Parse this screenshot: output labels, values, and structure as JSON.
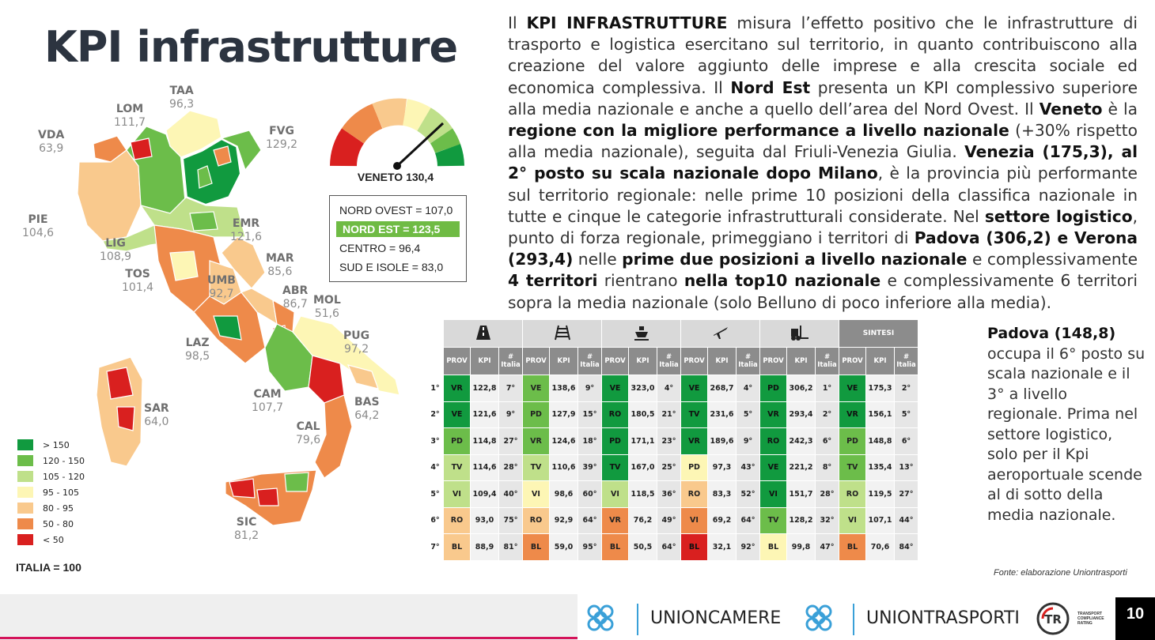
{
  "title": "KPI infrastrutture",
  "regions": [
    {
      "code": "TAA",
      "value": "96,3"
    },
    {
      "code": "LOM",
      "value": "111,7"
    },
    {
      "code": "VDA",
      "value": "63,9"
    },
    {
      "code": "FVG",
      "value": "129,2"
    },
    {
      "code": "PIE",
      "value": "104,6"
    },
    {
      "code": "EMR",
      "value": "121,6"
    },
    {
      "code": "LIG",
      "value": "108,9"
    },
    {
      "code": "TOS",
      "value": "101,4"
    },
    {
      "code": "UMB",
      "value": "92,7"
    },
    {
      "code": "MAR",
      "value": "85,6"
    },
    {
      "code": "ABR",
      "value": "86,7"
    },
    {
      "code": "MOL",
      "value": "51,6"
    },
    {
      "code": "LAZ",
      "value": "98,5"
    },
    {
      "code": "PUG",
      "value": "97,2"
    },
    {
      "code": "SAR",
      "value": "64,0"
    },
    {
      "code": "CAM",
      "value": "107,7"
    },
    {
      "code": "BAS",
      "value": "64,2"
    },
    {
      "code": "CAL",
      "value": "79,6"
    },
    {
      "code": "SIC",
      "value": "81,2"
    }
  ],
  "legend": [
    {
      "label": "> 150",
      "color": "#119a3f"
    },
    {
      "label": "120 - 150",
      "color": "#6cbd4a"
    },
    {
      "label": "105 - 120",
      "color": "#bfe08a"
    },
    {
      "label": "95 - 105",
      "color": "#fdf6b5"
    },
    {
      "label": "80 - 95",
      "color": "#f9c98d"
    },
    {
      "label": "50 - 80",
      "color": "#ee8a4a"
    },
    {
      "label": "< 50",
      "color": "#d9201f"
    }
  ],
  "italia_note": "ITALIA = 100",
  "gauge_label": "VENETO 130,4",
  "areas": {
    "nord_ovest": "NORD OVEST = 107,0",
    "nord_est": "NORD EST = 123,5",
    "centro": "CENTRO = 96,4",
    "sud": "SUD E ISOLE = 83,0"
  },
  "paragraph": {
    "p1": "Il ",
    "b1": "KPI INFRASTRUTTURE",
    "p2": " misura l’effetto positivo che le infrastrutture di trasporto e logistica esercitano sul territorio, in quanto contribuiscono alla creazione del valore aggiunto delle imprese e alla crescita sociale ed economica complessiva. Il ",
    "b2": "Nord Est",
    "p3": " presenta un KPI complessivo superiore alla media nazionale e anche a quello dell’area del Nord Ovest. Il ",
    "b3": "Veneto",
    "p4": " è la ",
    "b4": "regione con la migliore performance a livello nazionale",
    "p5": " (+30% rispetto alla media nazionale), seguita dal Friuli-Venezia Giulia. ",
    "b5": "Venezia (175,3), al 2° posto su scala nazionale dopo Milano",
    "p6": ", è la provincia più performante sul territorio regionale: nelle prime 10 posizioni della classifica nazionale in tutte e cinque le categorie infrastrutturali considerate. Nel ",
    "b6": "settore logistico",
    "p7": ", punto di forza regionale, primeggiano i territori di ",
    "b7": "Padova (306,2) e Verona (293,4)",
    "p8": " nelle ",
    "b8": "prime due posizioni a livello nazionale",
    "p9": " e complessivamente ",
    "b9": "4 territori",
    "p10": " rientrano ",
    "b10": "nella top10 nazionale",
    "p11": " e complessivamente 6 territori sopra la media nazionale (solo Belluno di poco inferiore alla media)."
  },
  "table": {
    "icons": [
      "road-icon",
      "rail-icon",
      "ship-icon",
      "plane-icon",
      "forklift-icon"
    ],
    "sintesi_label": "SINTESI",
    "col_prov": "PROV",
    "col_kpi": "KPI",
    "col_rank": "# Italia",
    "ranks": [
      "1°",
      "2°",
      "3°",
      "4°",
      "5°",
      "6°",
      "7°"
    ],
    "groups": [
      {
        "rows": [
          [
            "VR",
            "122,8",
            "7°",
            "dg"
          ],
          [
            "VE",
            "121,6",
            "9°",
            "dg"
          ],
          [
            "PD",
            "114,8",
            "27°",
            "mg"
          ],
          [
            "TV",
            "114,6",
            "28°",
            "lg"
          ],
          [
            "VI",
            "109,4",
            "40°",
            "lg"
          ],
          [
            "RO",
            "93,0",
            "75°",
            "lo"
          ],
          [
            "BL",
            "88,9",
            "81°",
            "lo"
          ]
        ]
      },
      {
        "rows": [
          [
            "VE",
            "138,6",
            "9°",
            "mg"
          ],
          [
            "PD",
            "127,9",
            "15°",
            "mg"
          ],
          [
            "VR",
            "124,6",
            "18°",
            "mg"
          ],
          [
            "TV",
            "110,6",
            "39°",
            "lg"
          ],
          [
            "VI",
            "98,6",
            "60°",
            "ly"
          ],
          [
            "RO",
            "92,9",
            "64°",
            "lo"
          ],
          [
            "BL",
            "59,0",
            "95°",
            "o"
          ]
        ]
      },
      {
        "rows": [
          [
            "VE",
            "323,0",
            "4°",
            "dg"
          ],
          [
            "RO",
            "180,5",
            "21°",
            "dg"
          ],
          [
            "PD",
            "171,1",
            "23°",
            "dg"
          ],
          [
            "TV",
            "167,0",
            "25°",
            "dg"
          ],
          [
            "VI",
            "118,5",
            "36°",
            "lg"
          ],
          [
            "VR",
            "76,2",
            "49°",
            "o"
          ],
          [
            "BL",
            "50,5",
            "64°",
            "o"
          ]
        ]
      },
      {
        "rows": [
          [
            "VE",
            "268,7",
            "4°",
            "dg"
          ],
          [
            "TV",
            "231,6",
            "5°",
            "dg"
          ],
          [
            "VR",
            "189,6",
            "9°",
            "dg"
          ],
          [
            "PD",
            "97,3",
            "43°",
            "ly"
          ],
          [
            "RO",
            "83,3",
            "52°",
            "lo"
          ],
          [
            "VI",
            "69,2",
            "64°",
            "o"
          ],
          [
            "BL",
            "32,1",
            "92°",
            "r"
          ]
        ]
      },
      {
        "rows": [
          [
            "PD",
            "306,2",
            "1°",
            "dg"
          ],
          [
            "VR",
            "293,4",
            "2°",
            "dg"
          ],
          [
            "RO",
            "242,3",
            "6°",
            "dg"
          ],
          [
            "VE",
            "221,2",
            "8°",
            "dg"
          ],
          [
            "VI",
            "151,7",
            "28°",
            "dg"
          ],
          [
            "TV",
            "128,2",
            "32°",
            "mg"
          ],
          [
            "BL",
            "99,8",
            "47°",
            "ly"
          ]
        ]
      },
      {
        "rows": [
          [
            "VE",
            "175,3",
            "2°",
            "dg"
          ],
          [
            "VR",
            "156,1",
            "5°",
            "dg"
          ],
          [
            "PD",
            "148,8",
            "6°",
            "mg"
          ],
          [
            "TV",
            "135,4",
            "13°",
            "mg"
          ],
          [
            "RO",
            "119,5",
            "27°",
            "lg"
          ],
          [
            "VI",
            "107,1",
            "44°",
            "lg"
          ],
          [
            "BL",
            "70,6",
            "84°",
            "o"
          ]
        ]
      }
    ]
  },
  "side_text": {
    "bold": "Padova (148,8)",
    "rest": " occupa il 6° posto su scala nazionale e il 3° a livello regionale. Prima nel settore logistico, solo per il Kpi aeroportuale scende al di sotto della media nazionale."
  },
  "source": "Fonte: elaborazione Uniontrasporti",
  "footer": {
    "brand1": "UNIONCAMERE",
    "brand2": "UNIONTRASPORTI",
    "tcr_caption": "TRANSPORT COMPLIANCE RATING",
    "page": "10"
  }
}
